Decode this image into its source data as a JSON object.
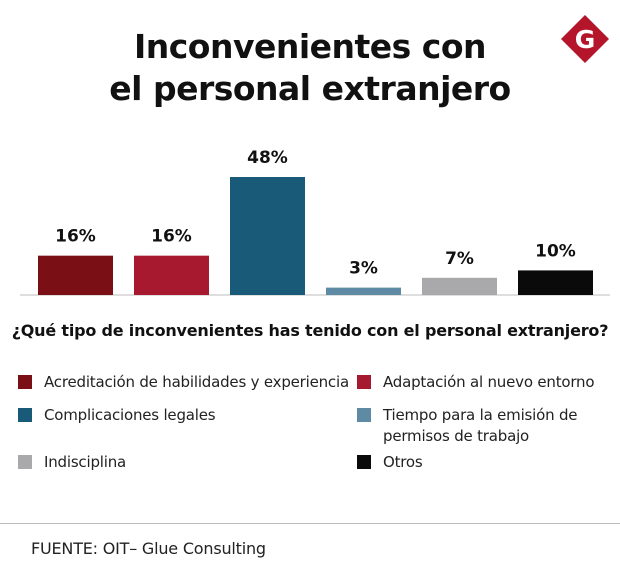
{
  "title": {
    "line1": "Inconvenientes con",
    "line2": "el personal extranjero"
  },
  "logo": {
    "letter": "G",
    "color": "#b5152b"
  },
  "chart_data": {
    "type": "bar",
    "title": "Inconvenientes con el personal extranjero",
    "categories": [
      "Acreditación de habilidades y experiencia",
      "Adaptación al nuevo entorno",
      "Complicaciones legales",
      "Tiempo para la emisión de permisos de trabajo",
      "Indisciplina",
      "Otros"
    ],
    "values": [
      16,
      16,
      48,
      3,
      7,
      10
    ],
    "labels": [
      "16%",
      "16%",
      "48%",
      "3%",
      "7%",
      "10%"
    ],
    "colors": [
      "#7b0f16",
      "#a6192e",
      "#185a78",
      "#5f8aa3",
      "#a9a9ab",
      "#0a0a0a"
    ],
    "ylim": [
      0,
      48
    ],
    "xlabel": "",
    "ylabel": "",
    "grid": false
  },
  "question": "¿Qué tipo de inconvenientes has tenido con el personal extranjero?",
  "legend": [
    {
      "lines": [
        "Acreditación de habilidades y experiencia"
      ],
      "color": "#7b0f16"
    },
    {
      "lines": [
        "Adaptación al nuevo entorno"
      ],
      "color": "#a6192e"
    },
    {
      "lines": [
        "Complicaciones legales"
      ],
      "color": "#185a78"
    },
    {
      "lines": [
        "Tiempo para la emisión de",
        "permisos de trabajo"
      ],
      "color": "#5f8aa3"
    },
    {
      "lines": [
        "Indisciplina"
      ],
      "color": "#a9a9ab"
    },
    {
      "lines": [
        "Otros"
      ],
      "color": "#0a0a0a"
    }
  ],
  "source": "FUENTE: OIT– Glue Consulting"
}
